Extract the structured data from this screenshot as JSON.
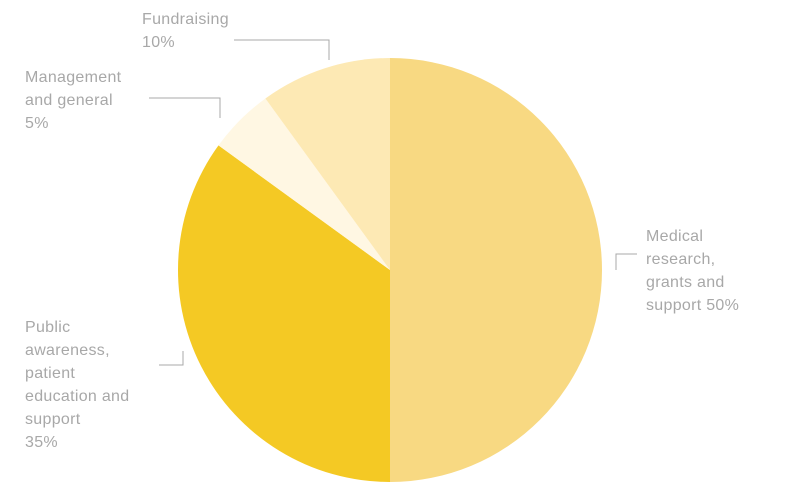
{
  "chart_data": {
    "type": "pie",
    "title": "",
    "start": "top",
    "direction": "clockwise",
    "slices": [
      {
        "label_lines": [
          "Medical",
          "research,",
          "grants and",
          "support 50%"
        ],
        "value": 50,
        "color": "#f8d982"
      },
      {
        "label_lines": [
          "Public",
          "awareness,",
          "patient",
          "education and",
          "support",
          "35%"
        ],
        "value": 35,
        "color": "#f4c924"
      },
      {
        "label_lines": [
          "Management",
          "and general",
          "5%"
        ],
        "value": 5,
        "color": "#fff7e3"
      },
      {
        "label_lines": [
          "Fundraising",
          "10%"
        ],
        "value": 10,
        "color": "#fde9b4"
      }
    ]
  }
}
